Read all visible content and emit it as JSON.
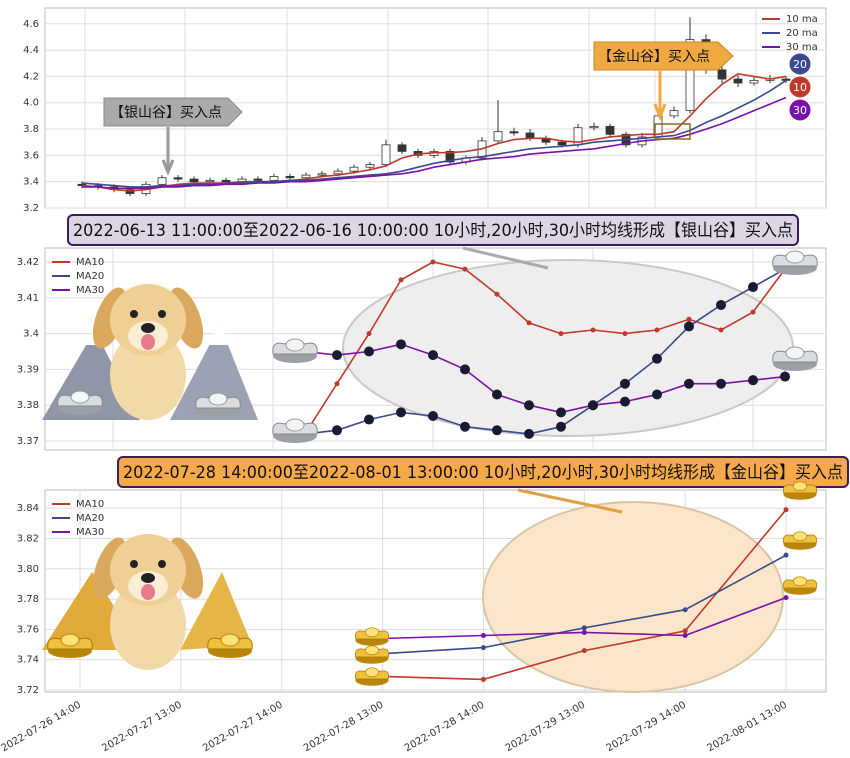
{
  "chart_data": [
    {
      "type": "candlestick",
      "ylim": [
        3.2,
        4.72
      ],
      "yticks": [
        3.2,
        3.4,
        3.6,
        3.8,
        {
          "value": 4,
          "label": "4.0"
        },
        4.2,
        4.4,
        4.6
      ],
      "grid": true,
      "legend": "upper right",
      "up_color": "#ffffff",
      "down_color": "#333333",
      "open": [
        3.38,
        3.37,
        3.36,
        3.34,
        3.31,
        3.38,
        3.43,
        3.42,
        3.4,
        3.41,
        3.4,
        3.42,
        3.41,
        3.44,
        3.43,
        3.45,
        3.46,
        3.48,
        3.51,
        3.53,
        3.68,
        3.63,
        3.6,
        3.63,
        3.55,
        3.58,
        3.71,
        3.78,
        3.77,
        3.73,
        3.7,
        3.68,
        3.81,
        3.82,
        3.76,
        3.68,
        3.74,
        3.9,
        3.94,
        4.48,
        4.25,
        4.18,
        4.15,
        4.17,
        4.18
      ],
      "high": [
        3.4,
        3.39,
        3.38,
        3.36,
        3.4,
        3.45,
        3.45,
        3.44,
        3.43,
        3.43,
        3.44,
        3.44,
        3.46,
        3.46,
        3.47,
        3.48,
        3.5,
        3.53,
        3.55,
        3.72,
        3.7,
        3.65,
        3.65,
        3.65,
        3.6,
        3.74,
        4.02,
        3.81,
        3.8,
        3.75,
        3.72,
        3.84,
        3.85,
        3.84,
        3.78,
        3.77,
        3.93,
        3.97,
        4.65,
        4.52,
        4.28,
        4.21,
        4.2,
        4.21,
        4.2
      ],
      "low": [
        3.35,
        3.34,
        3.32,
        3.29,
        3.29,
        3.36,
        3.4,
        3.38,
        3.38,
        3.38,
        3.38,
        3.39,
        3.39,
        3.41,
        3.41,
        3.43,
        3.44,
        3.46,
        3.49,
        3.51,
        3.61,
        3.58,
        3.58,
        3.53,
        3.53,
        3.56,
        3.69,
        3.75,
        3.71,
        3.68,
        3.66,
        3.66,
        3.79,
        3.74,
        3.66,
        3.66,
        3.72,
        3.88,
        3.92,
        4.22,
        4.15,
        4.12,
        4.13,
        4.15,
        4.15
      ],
      "close": [
        3.37,
        3.36,
        3.34,
        3.31,
        3.38,
        3.43,
        3.42,
        3.4,
        3.41,
        3.4,
        3.42,
        3.41,
        3.44,
        3.43,
        3.45,
        3.46,
        3.48,
        3.51,
        3.53,
        3.68,
        3.63,
        3.6,
        3.63,
        3.55,
        3.58,
        3.71,
        3.78,
        3.77,
        3.73,
        3.7,
        3.68,
        3.81,
        3.82,
        3.76,
        3.68,
        3.74,
        3.9,
        3.94,
        4.48,
        4.25,
        4.18,
        4.15,
        4.17,
        4.18,
        4.17
      ],
      "series": [
        {
          "name": "10 ma",
          "color": "#c0392b",
          "values": [
            3.37,
            3.36,
            3.34,
            3.33,
            3.34,
            3.36,
            3.38,
            3.39,
            3.39,
            3.39,
            3.4,
            3.4,
            3.4,
            3.41,
            3.42,
            3.44,
            3.45,
            3.47,
            3.49,
            3.52,
            3.58,
            3.61,
            3.62,
            3.62,
            3.63,
            3.65,
            3.69,
            3.72,
            3.73,
            3.73,
            3.71,
            3.7,
            3.72,
            3.74,
            3.75,
            3.76,
            3.76,
            3.78,
            3.9,
            4.03,
            4.14,
            4.22,
            4.2,
            4.18,
            4.2
          ]
        },
        {
          "name": "20 ma",
          "color": "#3b4a8f",
          "values": [
            3.39,
            3.38,
            3.37,
            3.36,
            3.36,
            3.37,
            3.37,
            3.38,
            3.38,
            3.39,
            3.39,
            3.4,
            3.4,
            3.41,
            3.41,
            3.42,
            3.43,
            3.44,
            3.45,
            3.46,
            3.48,
            3.51,
            3.54,
            3.56,
            3.58,
            3.59,
            3.61,
            3.63,
            3.65,
            3.66,
            3.67,
            3.68,
            3.7,
            3.71,
            3.72,
            3.73,
            3.74,
            3.75,
            3.79,
            3.85,
            3.9,
            3.96,
            4.02,
            4.09,
            4.17
          ]
        },
        {
          "name": "30 ma",
          "color": "#7a12a8",
          "values": [
            3.36,
            3.36,
            3.35,
            3.35,
            3.35,
            3.36,
            3.36,
            3.37,
            3.37,
            3.38,
            3.38,
            3.39,
            3.39,
            3.4,
            3.4,
            3.41,
            3.42,
            3.43,
            3.44,
            3.45,
            3.46,
            3.48,
            3.51,
            3.53,
            3.55,
            3.57,
            3.58,
            3.59,
            3.61,
            3.62,
            3.63,
            3.64,
            3.65,
            3.67,
            3.69,
            3.71,
            3.72,
            3.73,
            3.76,
            3.8,
            3.84,
            3.89,
            3.94,
            3.99,
            4.04
          ]
        }
      ],
      "annotations": [
        "【银山谷】买入点",
        "【金山谷】买入点"
      ],
      "badges": [
        {
          "label": "20",
          "color": "#3b4a8f"
        },
        {
          "label": "10",
          "color": "#c0392b"
        },
        {
          "label": "30",
          "color": "#7a12a8"
        }
      ]
    },
    {
      "type": "line",
      "title": "2022-06-13 11:00:00至2022-06-16 10:00:00 10小时,20小时,30小时均线形成【银山谷】买入点",
      "ylim": [
        3.3675,
        3.4239
      ],
      "yticks": [
        3.37,
        3.38,
        3.39,
        3.4,
        3.41,
        3.42
      ],
      "grid": true,
      "legend": "upper left",
      "series": [
        {
          "name": "MA10",
          "color": "#c0392b",
          "values": [
            3.372,
            3.386,
            3.4,
            3.415,
            3.42,
            3.418,
            3.411,
            3.403,
            3.4,
            3.401,
            3.4,
            3.401,
            3.404,
            3.401,
            3.406,
            3.418
          ]
        },
        {
          "name": "MA20",
          "color": "#3b4a8f",
          "values": [
            3.372,
            3.373,
            3.376,
            3.378,
            3.377,
            3.374,
            3.373,
            3.372,
            3.374,
            3.38,
            3.386,
            3.393,
            3.402,
            3.408,
            3.413,
            3.418
          ]
        },
        {
          "name": "MA30",
          "color": "#7a12a8",
          "values": [
            3.395,
            3.394,
            3.395,
            3.397,
            3.394,
            3.39,
            3.383,
            3.38,
            3.378,
            3.38,
            3.381,
            3.383,
            3.386,
            3.386,
            3.387,
            3.388
          ]
        }
      ]
    },
    {
      "type": "line",
      "title": "2022-07-28 14:00:00至2022-08-01 13:00:00 10小时,20小时,30小时均线形成【金山谷】买入点",
      "categories": [
        "2022-07-26 14:00",
        "2022-07-27 13:00",
        "2022-07-27 14:00",
        "2022-07-28 13:00",
        "2022-07-28 14:00",
        "2022-07-29 13:00",
        "2022-07-29 14:00",
        "2022-08-01 13:00"
      ],
      "ylim": [
        3.7187,
        3.852
      ],
      "yticks": [
        3.72,
        3.74,
        3.76,
        3.78,
        {
          "value": 3.8,
          "label": "3.80"
        },
        3.82,
        3.84
      ],
      "grid": true,
      "legend": "upper left",
      "series": [
        {
          "name": "MA10",
          "color": "#c0392b",
          "values": [
            null,
            null,
            null,
            3.729,
            3.727,
            3.746,
            3.759,
            3.839
          ]
        },
        {
          "name": "MA20",
          "color": "#3b4a8f",
          "values": [
            null,
            null,
            null,
            3.744,
            3.748,
            3.761,
            3.773,
            3.809
          ]
        },
        {
          "name": "MA30",
          "color": "#7a12a8",
          "values": [
            null,
            null,
            null,
            3.754,
            3.756,
            3.758,
            3.756,
            3.781
          ]
        }
      ]
    }
  ]
}
